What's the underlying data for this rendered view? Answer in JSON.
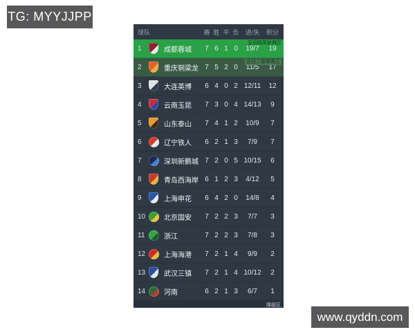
{
  "watermarks": {
    "tg_label": "TG: MYYJJPP",
    "site_label": "www.qyddn.com"
  },
  "table": {
    "headers": {
      "team": "球队",
      "played": "赛",
      "win": "胜",
      "draw": "平",
      "loss": "负",
      "goals": "进/失",
      "points": "积分"
    },
    "zone_labels": {
      "acl_elite": "亚冠精英联赛区",
      "acl_second": "亚冠二级联赛区",
      "relegation": "降级区"
    },
    "rows": [
      {
        "rank": "1",
        "team": "成都蓉城",
        "played": "7",
        "win": "6",
        "draw": "1",
        "loss": "0",
        "goals": "19/7",
        "points": "19",
        "zone": "acl_elite",
        "highlight": "elite",
        "crest": {
          "shape": "shield",
          "colors": [
            "#8c2332",
            "#ece7e3"
          ]
        }
      },
      {
        "rank": "2",
        "team": "重庆铜梁龙",
        "played": "7",
        "win": "5",
        "draw": "2",
        "loss": "0",
        "goals": "11/5",
        "points": "17",
        "zone": "acl_second",
        "highlight": "second",
        "crest": {
          "shape": "shield",
          "colors": [
            "#e0622a",
            "#f3a93c"
          ]
        }
      },
      {
        "rank": "3",
        "team": "大连英博",
        "played": "6",
        "win": "4",
        "draw": "0",
        "loss": "2",
        "goals": "12/11",
        "points": "12",
        "zone": null,
        "highlight": null,
        "crest": {
          "shape": "shield",
          "colors": [
            "#dfe3e8",
            "#2b3a4a"
          ]
        }
      },
      {
        "rank": "4",
        "team": "云南玉昆",
        "played": "7",
        "win": "3",
        "draw": "0",
        "loss": "4",
        "goals": "14/13",
        "points": "9",
        "zone": null,
        "highlight": null,
        "crest": {
          "shape": "shield",
          "colors": [
            "#c03040",
            "#2b4ba6"
          ]
        }
      },
      {
        "rank": "5",
        "team": "山东泰山",
        "played": "7",
        "win": "4",
        "draw": "1",
        "loss": "2",
        "goals": "10/9",
        "points": "7",
        "zone": null,
        "highlight": null,
        "crest": {
          "shape": "shield",
          "colors": [
            "#e89a2e",
            "#3a2a1a"
          ]
        }
      },
      {
        "rank": "6",
        "team": "辽宁铁人",
        "played": "6",
        "win": "2",
        "draw": "1",
        "loss": "3",
        "goals": "7/9",
        "points": "7",
        "zone": null,
        "highlight": null,
        "crest": {
          "shape": "circle",
          "colors": [
            "#d23b2a",
            "#e8e8e8"
          ]
        }
      },
      {
        "rank": "7",
        "team": "深圳新鹏城",
        "played": "7",
        "win": "2",
        "draw": "0",
        "loss": "5",
        "goals": "10/15",
        "points": "6",
        "zone": null,
        "highlight": null,
        "crest": {
          "shape": "circle",
          "colors": [
            "#1c2a52",
            "#4a7fd4"
          ]
        }
      },
      {
        "rank": "8",
        "team": "青岛西海岸",
        "played": "6",
        "win": "1",
        "draw": "2",
        "loss": "3",
        "goals": "4/12",
        "points": "5",
        "zone": null,
        "highlight": null,
        "crest": {
          "shape": "shield",
          "colors": [
            "#c23a2c",
            "#e8b23a"
          ]
        }
      },
      {
        "rank": "9",
        "team": "上海申花",
        "played": "6",
        "win": "4",
        "draw": "2",
        "loss": "0",
        "goals": "14/8",
        "points": "4",
        "zone": null,
        "highlight": null,
        "crest": {
          "shape": "shield",
          "colors": [
            "#2a55a8",
            "#e8ecf2"
          ]
        }
      },
      {
        "rank": "10",
        "team": "北京国安",
        "played": "7",
        "win": "2",
        "draw": "2",
        "loss": "3",
        "goals": "7/7",
        "points": "3",
        "zone": null,
        "highlight": null,
        "crest": {
          "shape": "circle",
          "colors": [
            "#3c9e3a",
            "#e8c23a"
          ]
        }
      },
      {
        "rank": "11",
        "team": "浙江",
        "played": "7",
        "win": "2",
        "draw": "2",
        "loss": "3",
        "goals": "7/8",
        "points": "3",
        "zone": null,
        "highlight": null,
        "crest": {
          "shape": "circle",
          "colors": [
            "#37a34a",
            "#1d5a2a"
          ]
        }
      },
      {
        "rank": "12",
        "team": "上海海港",
        "played": "7",
        "win": "2",
        "draw": "1",
        "loss": "4",
        "goals": "9/9",
        "points": "2",
        "zone": null,
        "highlight": null,
        "crest": {
          "shape": "circle",
          "colors": [
            "#c92b27",
            "#e8b93a"
          ]
        }
      },
      {
        "rank": "13",
        "team": "武汉三镇",
        "played": "7",
        "win": "2",
        "draw": "1",
        "loss": "4",
        "goals": "10/12",
        "points": "2",
        "zone": null,
        "highlight": null,
        "crest": {
          "shape": "shield",
          "colors": [
            "#2f4e9e",
            "#dfe6f0"
          ]
        }
      },
      {
        "rank": "14",
        "team": "河南",
        "played": "6",
        "win": "2",
        "draw": "1",
        "loss": "3",
        "goals": "6/7",
        "points": "1",
        "zone": null,
        "highlight": null,
        "crest": {
          "shape": "circle",
          "colors": [
            "#2e6b3e",
            "#c0392e"
          ]
        }
      }
    ]
  },
  "colors": {
    "panel_bg": "#2e3943",
    "elite_row_bg": "#2aa147",
    "second_row_bg": "#3a5a44",
    "watermark_bg": "#58585a",
    "header_text": "#98a2ac"
  }
}
